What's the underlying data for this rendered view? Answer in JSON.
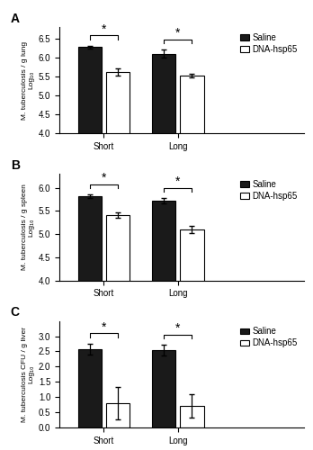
{
  "chart_data": [
    {
      "type": "bar",
      "title": "A",
      "y_label": "M. tuberculosis / g lung\nLog₁₀",
      "categories": [
        "Short",
        "Long"
      ],
      "series": [
        {
          "name": "Saline",
          "color": "#1a1a1a",
          "values": [
            6.27,
            6.1
          ],
          "errors": [
            0.04,
            0.1
          ]
        },
        {
          "name": "DNA-hsp65",
          "color": "#ffffff",
          "values": [
            5.62,
            5.52
          ],
          "errors": [
            0.1,
            0.04
          ]
        }
      ],
      "ylim": [
        4.0,
        6.8
      ],
      "yticks": [
        4.0,
        4.5,
        5.0,
        5.5,
        6.0,
        6.5
      ],
      "legend": "upper right",
      "annotations": [
        {
          "text": "*",
          "category": "Short"
        },
        {
          "text": "*",
          "category": "Long"
        }
      ]
    },
    {
      "type": "bar",
      "title": "B",
      "y_label": "M. tuberculosis / g spleen\nLog₁₀",
      "categories": [
        "Short",
        "Long"
      ],
      "series": [
        {
          "name": "Saline",
          "color": "#1a1a1a",
          "values": [
            5.82,
            5.72
          ],
          "errors": [
            0.03,
            0.06
          ]
        },
        {
          "name": "DNA-hsp65",
          "color": "#ffffff",
          "values": [
            5.42,
            5.1
          ],
          "errors": [
            0.06,
            0.08
          ]
        }
      ],
      "ylim": [
        4.0,
        6.3
      ],
      "yticks": [
        4.0,
        4.5,
        5.0,
        5.5,
        6.0
      ],
      "legend": "upper right",
      "annotations": [
        {
          "text": "*",
          "category": "Short"
        },
        {
          "text": "*",
          "category": "Long"
        }
      ]
    },
    {
      "type": "bar",
      "title": "C",
      "y_label": "M. tuberculosis CFU / g liver\nLog₁₀",
      "categories": [
        "Short",
        "Long"
      ],
      "series": [
        {
          "name": "Saline",
          "color": "#1a1a1a",
          "values": [
            2.58,
            2.54
          ],
          "errors": [
            0.18,
            0.18
          ]
        },
        {
          "name": "DNA-hsp65",
          "color": "#ffffff",
          "values": [
            0.8,
            0.7
          ],
          "errors": [
            0.52,
            0.38
          ]
        }
      ],
      "ylim": [
        0.0,
        3.5
      ],
      "yticks": [
        0.0,
        0.5,
        1.0,
        1.5,
        2.0,
        2.5,
        3.0
      ],
      "legend": "upper right",
      "annotations": [
        {
          "text": "*",
          "category": "Short"
        },
        {
          "text": "*",
          "category": "Long"
        }
      ]
    }
  ]
}
